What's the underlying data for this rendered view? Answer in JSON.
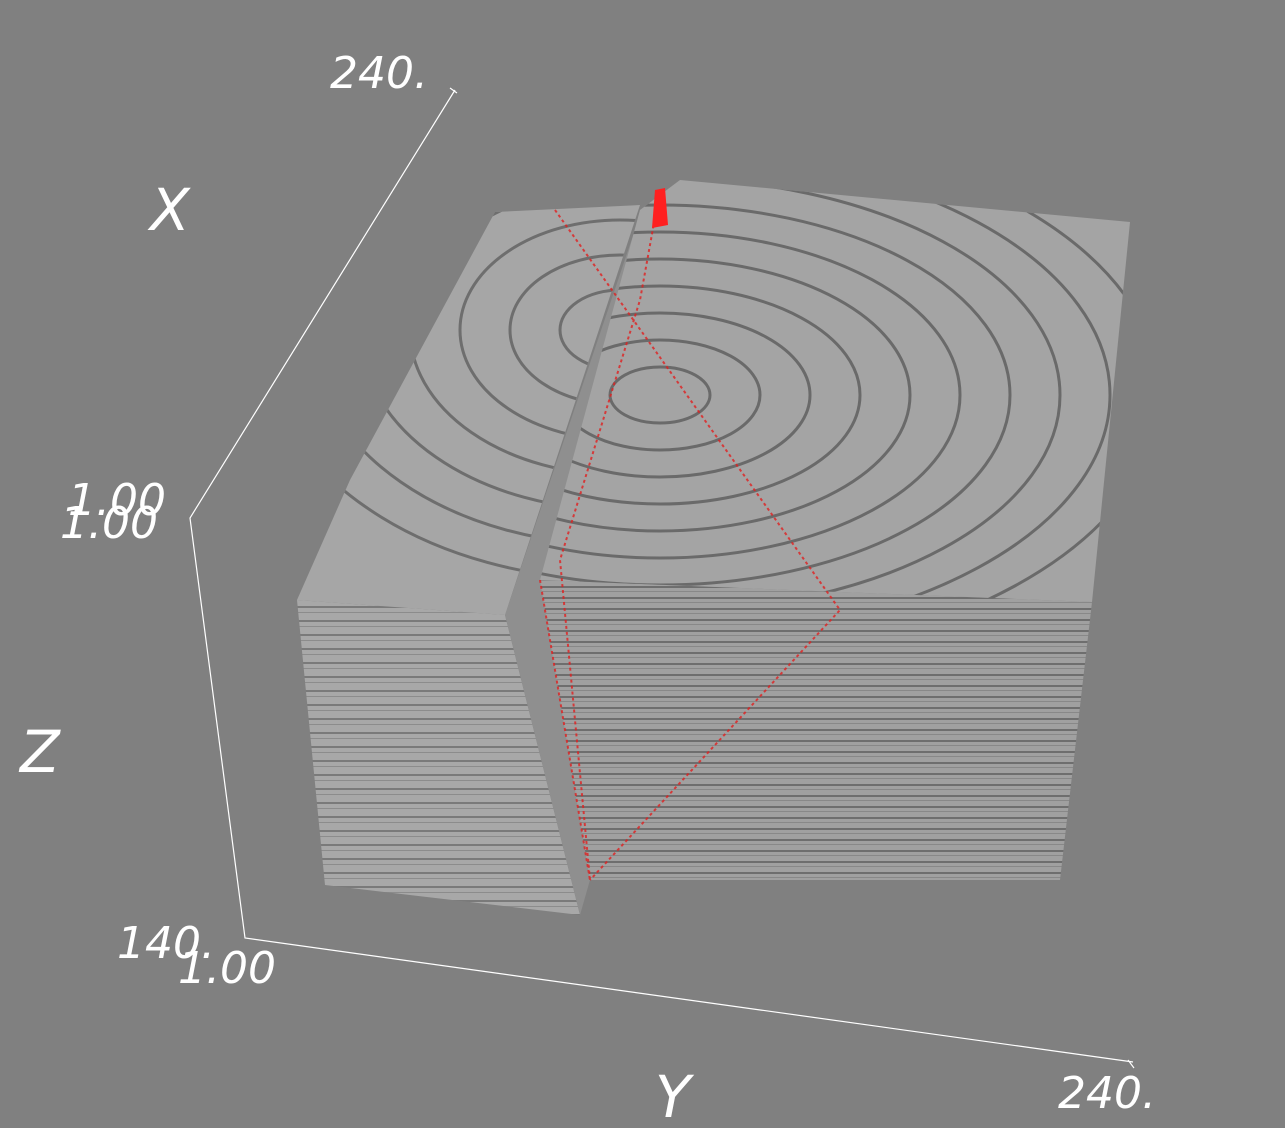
{
  "axes": {
    "x": {
      "label": "X",
      "min": "1.00",
      "max": "240."
    },
    "z": {
      "label": "Z",
      "min": "1.00",
      "max": "140."
    },
    "y": {
      "label": "Y",
      "min": "1.00",
      "max": "240."
    }
  }
}
